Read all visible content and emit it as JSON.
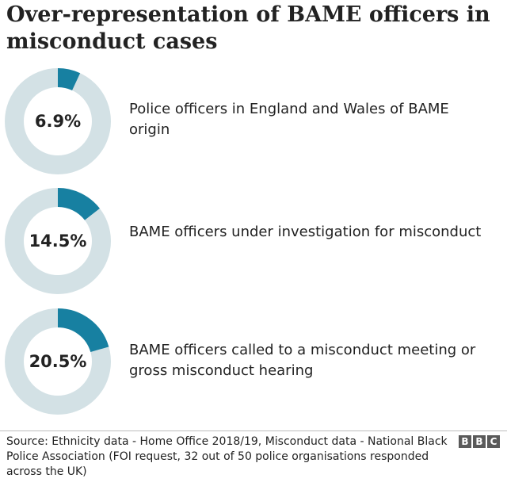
{
  "title": "Over-representation of BAME officers in misconduct cases",
  "colors": {
    "accent": "#1780a1",
    "track": "#d3e1e5"
  },
  "chart_data": [
    {
      "type": "pie",
      "value": 6.9,
      "value_label": "6.9%",
      "description": "Police officers in England and Wales of BAME origin"
    },
    {
      "type": "pie",
      "value": 14.5,
      "value_label": "14.5%",
      "description": "BAME officers under investigation for misconduct"
    },
    {
      "type": "pie",
      "value": 20.5,
      "value_label": "20.5%",
      "description": "BAME officers called to a misconduct meeting or gross misconduct hearing"
    }
  ],
  "source": "Source: Ethnicity data - Home Office 2018/19, Misconduct data - National Black Police Association (FOI request, 32 out of 50 police organisations responded across the UK)",
  "logo": [
    "B",
    "B",
    "C"
  ]
}
